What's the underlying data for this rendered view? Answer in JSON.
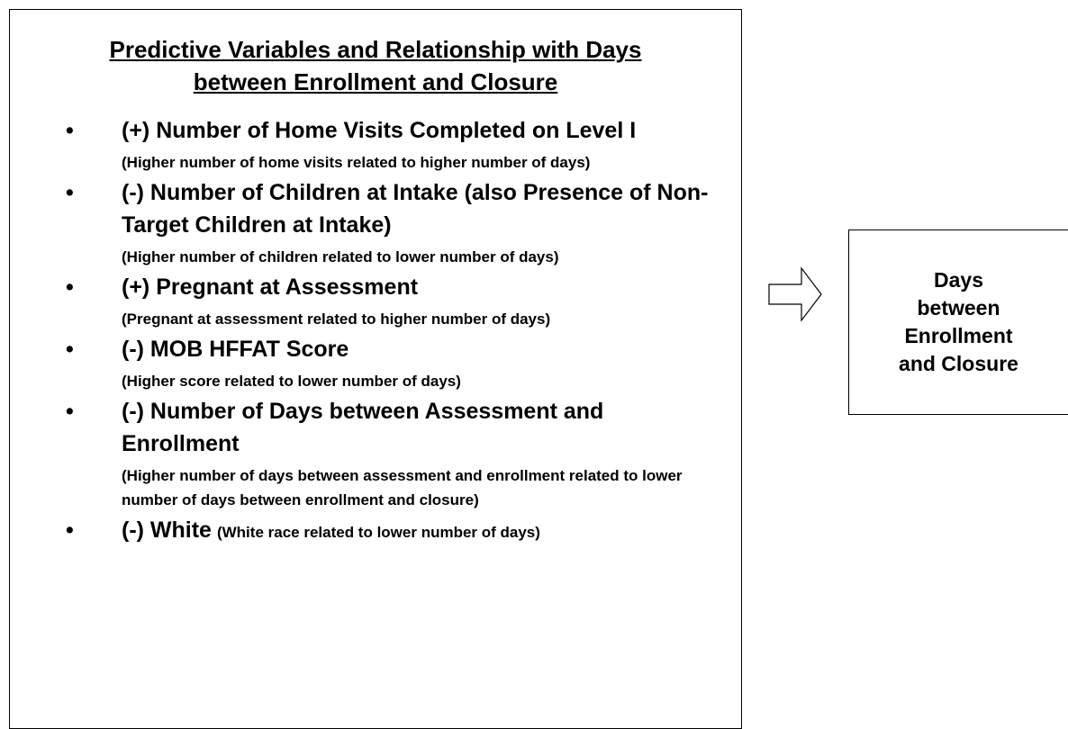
{
  "title": "Predictive Variables and Relationship with Days between Enrollment and Closure",
  "items": [
    {
      "label": "(+) Number of Home Visits Completed on Level I",
      "note": "(Higher number of home visits related to higher number of days)"
    },
    {
      "label": "(-) Number of Children at Intake (also Presence of Non-Target Children at Intake)",
      "note": "(Higher number of children related to lower number of days)"
    },
    {
      "label": "(+) Pregnant at Assessment",
      "note": "(Pregnant at assessment related to higher number of days)"
    },
    {
      "label": "(-) MOB HFFAT Score",
      "note": "(Higher score related to lower number of days)"
    },
    {
      "label": "(-) Number of Days between Assessment and Enrollment",
      "note": "(Higher number of days between assessment and enrollment related to lower number of days between enrollment and closure)"
    },
    {
      "label": "(-) White",
      "note": "(White race related to lower number of days)"
    }
  ],
  "outcome": "Days between Enrollment and Closure"
}
